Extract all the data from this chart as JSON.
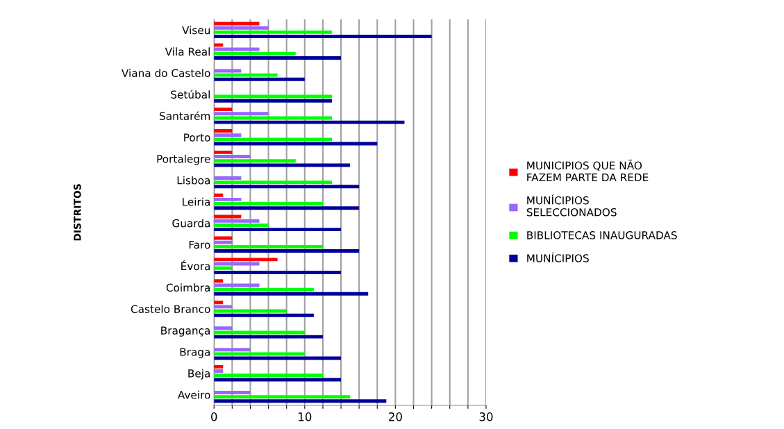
{
  "chart_data": {
    "type": "bar",
    "orientation": "horizontal",
    "ylabel": "DISTRITOS",
    "categories": [
      "Viseu",
      "Vila Real",
      "Viana do Castelo",
      "Setúbal",
      "Santarém",
      "Porto",
      "Portalegre",
      "Lisboa",
      "Leiria",
      "Guarda",
      "Faro",
      "Évora",
      "Coimbra",
      "Castelo Branco",
      "Bragança",
      "Braga",
      "Beja",
      "Aveiro"
    ],
    "series": [
      {
        "name": "MUNICIPIOS QUE NÃO\nFAZEM PARTE DA REDE",
        "color": "#ff0000",
        "values": [
          5,
          1,
          0,
          0,
          2,
          2,
          2,
          0,
          1,
          3,
          2,
          7,
          1,
          1,
          0,
          0,
          1,
          0
        ]
      },
      {
        "name": "MUNÍCIPIOS\nSELECCIONADOS",
        "color": "#9966ff",
        "values": [
          6,
          5,
          3,
          0,
          6,
          3,
          4,
          3,
          3,
          5,
          2,
          5,
          5,
          2,
          2,
          4,
          1,
          4
        ]
      },
      {
        "name": "BIBLIOTECAS INAUGURADAS",
        "color": "#00ff00",
        "values": [
          13,
          9,
          7,
          13,
          13,
          13,
          9,
          13,
          12,
          6,
          12,
          2,
          11,
          8,
          10,
          10,
          12,
          15
        ]
      },
      {
        "name": "MUNÍCIPIOS",
        "color": "#000099",
        "values": [
          24,
          14,
          10,
          13,
          21,
          18,
          15,
          16,
          16,
          14,
          16,
          14,
          17,
          11,
          12,
          14,
          14,
          19
        ]
      }
    ],
    "xlim": [
      0,
      30
    ],
    "xticks": [
      0,
      {
        "value": 2,
        "label": null
      },
      {
        "value": 4,
        "label": null
      },
      {
        "value": 6,
        "label": null
      },
      {
        "value": 8,
        "label": null
      },
      10,
      {
        "value": 12,
        "label": null
      },
      {
        "value": 14,
        "label": null
      },
      {
        "value": 16,
        "label": null
      },
      {
        "value": 18,
        "label": null
      },
      20,
      {
        "value": 22,
        "label": null
      },
      {
        "value": 24,
        "label": null
      },
      {
        "value": 26,
        "label": null
      },
      {
        "value": 28,
        "label": null
      },
      30
    ],
    "grid": "x",
    "legend": "right"
  }
}
